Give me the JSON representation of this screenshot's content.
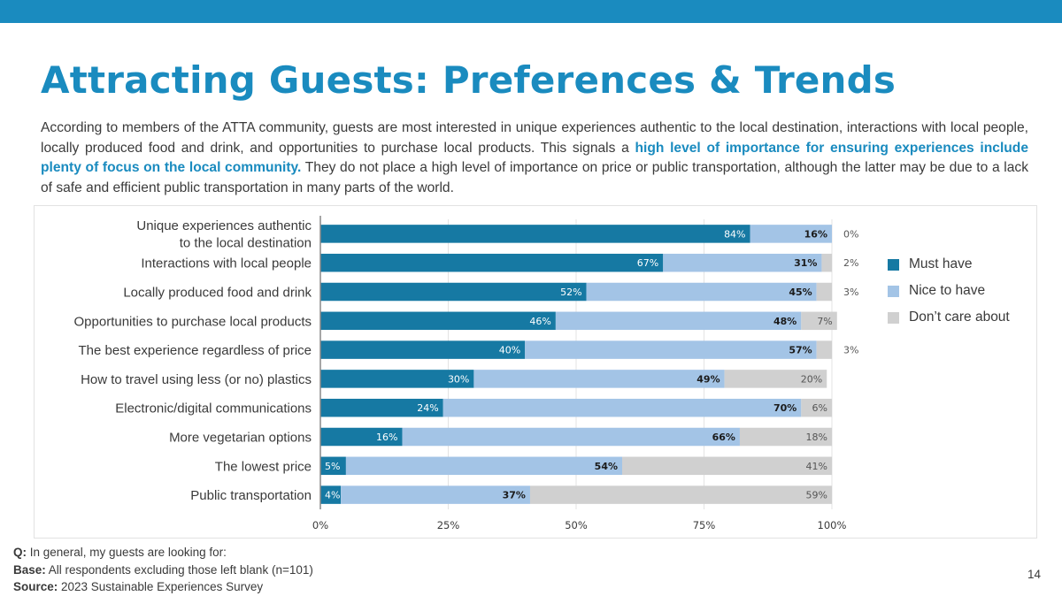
{
  "title": "Attracting Guests: Preferences & Trends",
  "intro": {
    "part1": "According to members of the ATTA community, guests are most interested in unique experiences authentic to the local destination, interactions with local people, locally produced food and drink, and opportunities to purchase local products. This signals a ",
    "highlight": "high level of importance for ensuring experiences include plenty of focus on the local community.",
    "part2": " They do not place a high level of importance on price or public transportation, although the latter may be due to a lack of safe and efficient public transportation in many parts of the world."
  },
  "footer": {
    "q_label": "Q:",
    "q_text": " In general, my guests are looking for:",
    "base_label": "Base:",
    "base_text": " All respondents excluding those left blank (n=101)",
    "source_label": "Source:",
    "source_text": " 2023 Sustainable Experiences Survey"
  },
  "page_number": "14",
  "colors": {
    "brand": "#1a8bbf",
    "must_have": "#1679a3",
    "nice_to_have": "#a3c4e6",
    "dont_care": "#d0d0d0"
  },
  "chart_data": {
    "type": "bar",
    "orientation": "horizontal",
    "stacked": true,
    "categories": [
      [
        "Unique experiences authentic",
        "to the local destination"
      ],
      [
        "Interactions with local people"
      ],
      [
        "Locally produced food and drink"
      ],
      [
        "Opportunities to purchase local products"
      ],
      [
        "The best experience regardless of price"
      ],
      [
        "How to travel using less (or no) plastics"
      ],
      [
        "Electronic/digital communications"
      ],
      [
        "More vegetarian options"
      ],
      [
        "The lowest price"
      ],
      [
        "Public transportation"
      ]
    ],
    "series": [
      {
        "name": "Must have",
        "color": "#1679a3",
        "values": [
          84,
          67,
          52,
          46,
          40,
          30,
          24,
          16,
          5,
          4
        ]
      },
      {
        "name": "Nice to have",
        "color": "#a3c4e6",
        "values": [
          16,
          31,
          45,
          48,
          57,
          49,
          70,
          66,
          54,
          37
        ]
      },
      {
        "name": "Don’t care about",
        "color": "#d0d0d0",
        "values": [
          0,
          2,
          3,
          7,
          3,
          20,
          6,
          18,
          41,
          59
        ]
      }
    ],
    "xlim": [
      0,
      100
    ],
    "xticks": [
      "0%",
      "25%",
      "50%",
      "75%",
      "100%"
    ],
    "xtick_values": [
      0,
      25,
      50,
      75,
      100
    ],
    "value_suffix": "%",
    "grid": true,
    "legend_position": "right"
  }
}
